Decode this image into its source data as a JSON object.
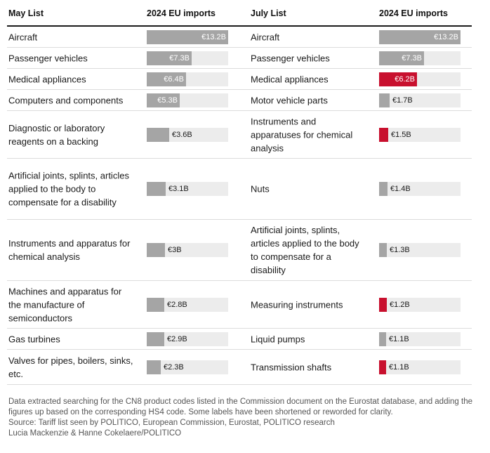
{
  "headers": {
    "may_list": "May List",
    "may_imports": "2024 EU imports",
    "july_list": "July List",
    "july_imports": "2024 EU imports"
  },
  "colors": {
    "bar": "#a5a5a5",
    "highlight": "#c8102e",
    "track": "#ececec"
  },
  "chart_data": {
    "type": "bar",
    "max_value": 13.2,
    "unit": "€B",
    "may_list": [
      {
        "label": "Aircraft",
        "value": 13.2,
        "display": "€13.2B"
      },
      {
        "label": "Passenger vehicles",
        "value": 7.3,
        "display": "€7.3B"
      },
      {
        "label": "Medical appliances",
        "value": 6.4,
        "display": "€6.4B"
      },
      {
        "label": "Computers and components",
        "value": 5.3,
        "display": "€5.3B"
      },
      {
        "label": "Diagnostic or laboratory reagents on a backing",
        "value": 3.6,
        "display": "€3.6B"
      },
      {
        "label": "Artificial joints, splints, articles applied to the body to compensate for a disability",
        "value": 3.1,
        "display": "€3.1B"
      },
      {
        "label": "Instruments and apparatus for chemical analysis",
        "value": 3.0,
        "display": "€3B"
      },
      {
        "label": "Machines and apparatus for the manufacture of semiconductors",
        "value": 2.8,
        "display": "€2.8B"
      },
      {
        "label": "Gas turbines",
        "value": 2.9,
        "display": "€2.9B"
      },
      {
        "label": "Valves for pipes, boilers, sinks, etc.",
        "value": 2.3,
        "display": "€2.3B"
      }
    ],
    "july_list": [
      {
        "label": "Aircraft",
        "value": 13.2,
        "display": "€13.2B",
        "highlight": false
      },
      {
        "label": "Passenger vehicles",
        "value": 7.3,
        "display": "€7.3B",
        "highlight": false
      },
      {
        "label": "Medical appliances",
        "value": 6.2,
        "display": "€6.2B",
        "highlight": true
      },
      {
        "label": "Motor vehicle parts",
        "value": 1.7,
        "display": "€1.7B",
        "highlight": false
      },
      {
        "label": "Instruments and apparatuses for chemical analysis",
        "value": 1.5,
        "display": "€1.5B",
        "highlight": true
      },
      {
        "label": "Nuts",
        "value": 1.4,
        "display": "€1.4B",
        "highlight": false
      },
      {
        "label": "Artificial joints, splints, articles applied to the body to compensate for a disability",
        "value": 1.3,
        "display": "€1.3B",
        "highlight": false
      },
      {
        "label": "Measuring instruments",
        "value": 1.2,
        "display": "€1.2B",
        "highlight": true
      },
      {
        "label": "Liquid pumps",
        "value": 1.1,
        "display": "€1.1B",
        "highlight": false
      },
      {
        "label": "Transmission shafts",
        "value": 1.1,
        "display": "€1.1B",
        "highlight": true
      }
    ]
  },
  "footer": {
    "note": "Data extracted searching for the CN8 product codes listed in the Commission document on the Eurostat database, and adding the figures up based on the corresponding HS4 code. Some labels have been shortened or reworded for clarity.",
    "source": "Source: Tariff list seen by POLITICO, European Commission, Eurostat, POLITICO research",
    "credit": "Lucia Mackenzie & Hanne Cokelaere/POLITICO"
  }
}
